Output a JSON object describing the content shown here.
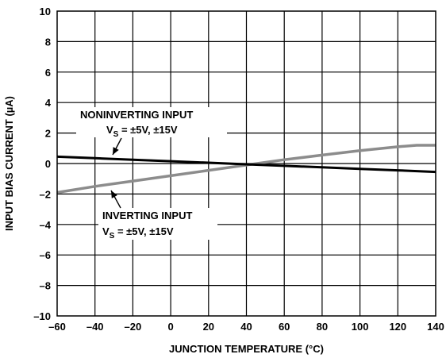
{
  "chart_data": {
    "type": "line",
    "title": "",
    "xlabel": "JUNCTION TEMPERATURE (°C)",
    "ylabel": "INPUT BIAS CURRENT (µA)",
    "xlim": [
      -60,
      140
    ],
    "ylim": [
      -10,
      10
    ],
    "grid": true,
    "legend": "none",
    "x_ticks": [
      -60,
      -40,
      -20,
      0,
      20,
      40,
      60,
      80,
      100,
      120,
      140
    ],
    "y_ticks": [
      -10,
      -8,
      -6,
      -4,
      -2,
      0,
      2,
      4,
      6,
      8,
      10
    ],
    "x_tick_labels": [
      "–60",
      "–40",
      "–20",
      "0",
      "20",
      "40",
      "60",
      "80",
      "100",
      "120",
      "140"
    ],
    "y_tick_labels": [
      "–10",
      "–8",
      "–6",
      "–4",
      "–2",
      "0",
      "2",
      "4",
      "6",
      "8",
      "10"
    ],
    "series": [
      {
        "color": "#000000",
        "x": [
          -60,
          -40,
          -20,
          0,
          20,
          40,
          60,
          80,
          100,
          120,
          140
        ],
        "y": [
          0.45,
          0.35,
          0.25,
          0.15,
          0.05,
          -0.05,
          -0.15,
          -0.25,
          -0.35,
          -0.45,
          -0.55
        ]
      },
      {
        "color": "#8c8c8c",
        "x": [
          -60,
          -40,
          -20,
          0,
          20,
          40,
          60,
          80,
          100,
          120,
          130,
          140
        ],
        "y": [
          -1.9,
          -1.5,
          -1.15,
          -0.8,
          -0.45,
          -0.1,
          0.25,
          0.55,
          0.85,
          1.1,
          1.2,
          1.2
        ]
      }
    ],
    "annotations": {
      "noninverting": {
        "line1": "NONINVERTING INPUT",
        "vs_main": "V",
        "vs_sub": "S",
        "vs_rest": " = ±5V, ±15V"
      },
      "inverting": {
        "line1": "INVERTING INPUT",
        "vs_main": "V",
        "vs_sub": "S",
        "vs_rest": " = ±5V, ±15V"
      }
    }
  }
}
